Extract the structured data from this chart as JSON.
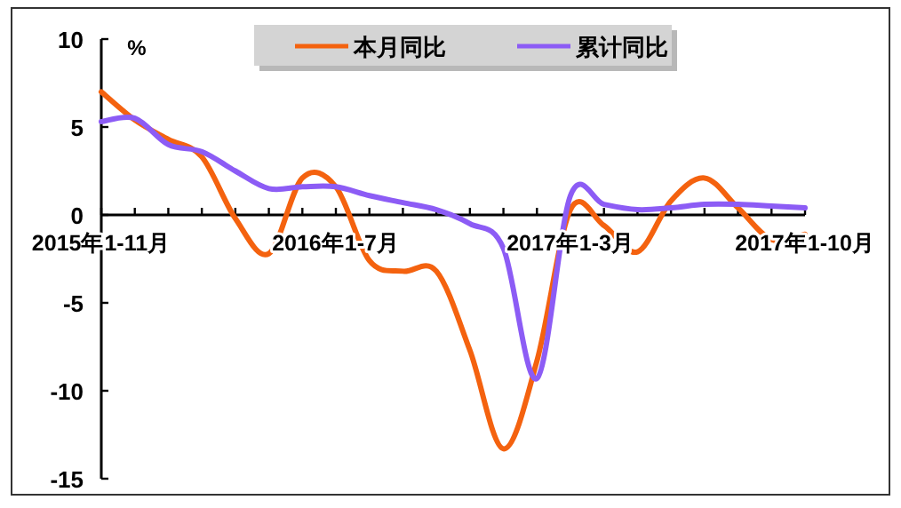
{
  "chart_data": {
    "type": "line",
    "ylabel": "%",
    "categories": [
      "2015年1-11月",
      null,
      null,
      null,
      null,
      null,
      null,
      "2016年1-7月",
      null,
      null,
      null,
      null,
      null,
      null,
      "2017年1-3月",
      null,
      null,
      null,
      null,
      null,
      null,
      "2017年1-10月"
    ],
    "series": [
      {
        "name": "本月同比",
        "color": "#f4620f",
        "values": [
          7.0,
          5.4,
          4.3,
          3.3,
          -0.2,
          -2.2,
          2.1,
          1.6,
          -2.6,
          -3.2,
          -3.2,
          -7.7,
          -13.3,
          -8.3,
          0.3,
          -0.6,
          -2.1,
          0.8,
          2.1,
          0.4,
          -1.4,
          -1.1
        ]
      },
      {
        "name": "累计同比",
        "color": "#8c5cf5",
        "values": [
          5.3,
          5.5,
          4.0,
          3.6,
          2.5,
          1.5,
          1.6,
          1.6,
          1.1,
          0.7,
          0.3,
          -0.5,
          -1.9,
          -9.3,
          1.1,
          0.6,
          0.3,
          0.4,
          0.6,
          0.6,
          0.5,
          0.4
        ]
      }
    ],
    "ylim": [
      -15,
      10
    ],
    "yticks": [
      -15,
      -10,
      -5,
      0,
      5,
      10
    ],
    "legend": "top",
    "grid": false
  }
}
